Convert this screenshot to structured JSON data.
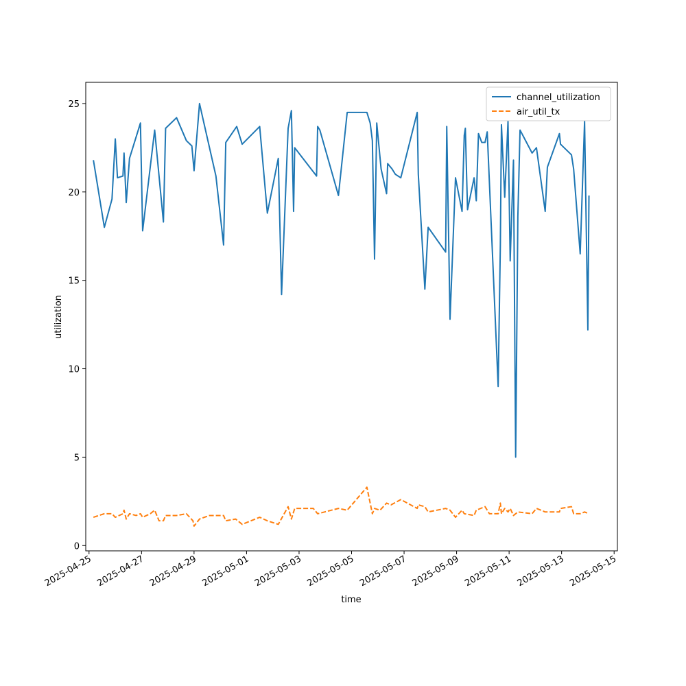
{
  "chart_data": {
    "type": "line",
    "xlabel": "time",
    "ylabel": "utilization",
    "x_type": "datetime",
    "xlim": [
      "2025-04-24T21:00",
      "2025-05-15T03:00"
    ],
    "ylim": [
      -0.3,
      26.2
    ],
    "x_ticks": [
      "2025-04-25",
      "2025-04-27",
      "2025-04-29",
      "2025-05-01",
      "2025-05-03",
      "2025-05-05",
      "2025-05-07",
      "2025-05-09",
      "2025-05-11",
      "2025-05-13",
      "2025-05-15"
    ],
    "y_ticks": [
      0,
      5,
      10,
      15,
      20,
      25
    ],
    "legend": {
      "position": "top-right"
    },
    "grid": false,
    "series": [
      {
        "name": "channel_utilization",
        "color": "#1f77b4",
        "dash": "solid",
        "points": [
          [
            "2025-04-25T04:00",
            21.8
          ],
          [
            "2025-04-25T14:00",
            18.0
          ],
          [
            "2025-04-25T21:00",
            19.6
          ],
          [
            "2025-04-26T00:00",
            23.0
          ],
          [
            "2025-04-26T02:00",
            20.8
          ],
          [
            "2025-04-26T07:00",
            20.9
          ],
          [
            "2025-04-26T08:00",
            22.2
          ],
          [
            "2025-04-26T10:00",
            19.4
          ],
          [
            "2025-04-26T13:00",
            21.9
          ],
          [
            "2025-04-26T23:00",
            23.9
          ],
          [
            "2025-04-27T01:00",
            17.8
          ],
          [
            "2025-04-27T12:00",
            23.5
          ],
          [
            "2025-04-27T20:00",
            18.3
          ],
          [
            "2025-04-27T22:00",
            23.6
          ],
          [
            "2025-04-28T08:00",
            24.2
          ],
          [
            "2025-04-28T17:00",
            22.9
          ],
          [
            "2025-04-28T22:00",
            22.6
          ],
          [
            "2025-04-29T00:00",
            21.2
          ],
          [
            "2025-04-29T05:00",
            25.0
          ],
          [
            "2025-04-29T09:00",
            23.9
          ],
          [
            "2025-04-29T20:00",
            20.9
          ],
          [
            "2025-04-30T03:00",
            17.0
          ],
          [
            "2025-04-30T05:00",
            22.8
          ],
          [
            "2025-04-30T15:00",
            23.7
          ],
          [
            "2025-04-30T20:00",
            22.7
          ],
          [
            "2025-05-01T12:00",
            23.7
          ],
          [
            "2025-05-01T19:00",
            18.8
          ],
          [
            "2025-05-02T05:00",
            21.9
          ],
          [
            "2025-05-02T08:00",
            14.2
          ],
          [
            "2025-05-02T14:00",
            23.6
          ],
          [
            "2025-05-02T17:00",
            24.6
          ],
          [
            "2025-05-02T19:00",
            18.9
          ],
          [
            "2025-05-02T20:00",
            22.5
          ],
          [
            "2025-05-03T16:00",
            20.9
          ],
          [
            "2025-05-03T17:00",
            23.7
          ],
          [
            "2025-05-03T19:00",
            23.5
          ],
          [
            "2025-05-04T12:00",
            19.8
          ],
          [
            "2025-05-04T20:00",
            24.5
          ],
          [
            "2025-05-05T14:00",
            24.5
          ],
          [
            "2025-05-05T17:00",
            23.9
          ],
          [
            "2025-05-05T19:00",
            22.9
          ],
          [
            "2025-05-05T21:00",
            16.2
          ],
          [
            "2025-05-05T23:00",
            23.9
          ],
          [
            "2025-05-06T03:00",
            21.3
          ],
          [
            "2025-05-06T08:00",
            19.9
          ],
          [
            "2025-05-06T09:00",
            21.6
          ],
          [
            "2025-05-06T13:00",
            21.3
          ],
          [
            "2025-05-06T16:00",
            21.0
          ],
          [
            "2025-05-06T21:00",
            20.8
          ],
          [
            "2025-05-07T12:00",
            24.5
          ],
          [
            "2025-05-07T13:00",
            21.0
          ],
          [
            "2025-05-07T19:00",
            14.5
          ],
          [
            "2025-05-07T22:00",
            18.0
          ],
          [
            "2025-05-08T14:00",
            16.6
          ],
          [
            "2025-05-08T15:00",
            23.7
          ],
          [
            "2025-05-08T18:00",
            12.8
          ],
          [
            "2025-05-08T23:00",
            20.8
          ],
          [
            "2025-05-09T05:00",
            18.9
          ],
          [
            "2025-05-09T07:00",
            23.2
          ],
          [
            "2025-05-09T08:00",
            23.6
          ],
          [
            "2025-05-09T10:00",
            19.0
          ],
          [
            "2025-05-09T16:00",
            20.8
          ],
          [
            "2025-05-09T18:00",
            19.5
          ],
          [
            "2025-05-09T20:00",
            23.3
          ],
          [
            "2025-05-09T23:00",
            22.8
          ],
          [
            "2025-05-10T02:00",
            22.8
          ],
          [
            "2025-05-10T04:00",
            23.4
          ],
          [
            "2025-05-10T14:00",
            9.0
          ],
          [
            "2025-05-10T16:00",
            17.0
          ],
          [
            "2025-05-10T17:00",
            23.8
          ],
          [
            "2025-05-10T20:00",
            19.7
          ],
          [
            "2025-05-10T23:00",
            24.0
          ],
          [
            "2025-05-11T01:00",
            16.1
          ],
          [
            "2025-05-11T04:00",
            21.8
          ],
          [
            "2025-05-11T06:00",
            5.0
          ],
          [
            "2025-05-11T08:00",
            18.6
          ],
          [
            "2025-05-11T10:00",
            23.5
          ],
          [
            "2025-05-11T21:00",
            22.2
          ],
          [
            "2025-05-12T01:00",
            22.5
          ],
          [
            "2025-05-12T09:00",
            18.9
          ],
          [
            "2025-05-12T11:00",
            21.4
          ],
          [
            "2025-05-12T22:00",
            23.3
          ],
          [
            "2025-05-12T23:00",
            22.7
          ],
          [
            "2025-05-13T09:00",
            22.1
          ],
          [
            "2025-05-13T11:00",
            21.3
          ],
          [
            "2025-05-13T17:00",
            16.5
          ],
          [
            "2025-05-13T21:00",
            24.0
          ],
          [
            "2025-05-14T00:00",
            12.2
          ],
          [
            "2025-05-14T01:00",
            19.8
          ]
        ]
      },
      {
        "name": "air_util_tx",
        "color": "#ff7f0e",
        "dash": "dashed",
        "points": [
          [
            "2025-04-25T04:00",
            1.6
          ],
          [
            "2025-04-25T14:00",
            1.8
          ],
          [
            "2025-04-25T21:00",
            1.8
          ],
          [
            "2025-04-26T00:00",
            1.6
          ],
          [
            "2025-04-26T07:00",
            1.8
          ],
          [
            "2025-04-26T08:00",
            2.0
          ],
          [
            "2025-04-26T10:00",
            1.5
          ],
          [
            "2025-04-26T13:00",
            1.8
          ],
          [
            "2025-04-26T19:00",
            1.7
          ],
          [
            "2025-04-26T23:00",
            1.8
          ],
          [
            "2025-04-27T01:00",
            1.6
          ],
          [
            "2025-04-27T08:00",
            1.8
          ],
          [
            "2025-04-27T12:00",
            2.0
          ],
          [
            "2025-04-27T16:00",
            1.4
          ],
          [
            "2025-04-27T20:00",
            1.4
          ],
          [
            "2025-04-27T22:00",
            1.7
          ],
          [
            "2025-04-28T08:00",
            1.7
          ],
          [
            "2025-04-28T17:00",
            1.8
          ],
          [
            "2025-04-28T23:00",
            1.4
          ],
          [
            "2025-04-29T00:00",
            1.1
          ],
          [
            "2025-04-29T05:00",
            1.5
          ],
          [
            "2025-04-29T14:00",
            1.7
          ],
          [
            "2025-04-30T03:00",
            1.7
          ],
          [
            "2025-04-30T05:00",
            1.4
          ],
          [
            "2025-04-30T14:00",
            1.5
          ],
          [
            "2025-04-30T20:00",
            1.2
          ],
          [
            "2025-05-01T12:00",
            1.6
          ],
          [
            "2025-05-01T19:00",
            1.4
          ],
          [
            "2025-05-02T05:00",
            1.2
          ],
          [
            "2025-05-02T14:00",
            2.2
          ],
          [
            "2025-05-02T17:00",
            1.5
          ],
          [
            "2025-05-02T20:00",
            2.1
          ],
          [
            "2025-05-03T13:00",
            2.1
          ],
          [
            "2025-05-03T17:00",
            1.8
          ],
          [
            "2025-05-04T12:00",
            2.1
          ],
          [
            "2025-05-04T20:00",
            2.0
          ],
          [
            "2025-05-05T14:00",
            3.3
          ],
          [
            "2025-05-05T19:00",
            1.8
          ],
          [
            "2025-05-05T21:00",
            2.1
          ],
          [
            "2025-05-06T02:00",
            2.0
          ],
          [
            "2025-05-06T08:00",
            2.4
          ],
          [
            "2025-05-06T12:00",
            2.3
          ],
          [
            "2025-05-06T21:00",
            2.6
          ],
          [
            "2025-05-07T12:00",
            2.1
          ],
          [
            "2025-05-07T13:00",
            2.3
          ],
          [
            "2025-05-07T19:00",
            2.2
          ],
          [
            "2025-05-07T22:00",
            1.9
          ],
          [
            "2025-05-08T14:00",
            2.1
          ],
          [
            "2025-05-08T18:00",
            2.0
          ],
          [
            "2025-05-08T23:00",
            1.6
          ],
          [
            "2025-05-09T05:00",
            2.0
          ],
          [
            "2025-05-09T07:00",
            1.8
          ],
          [
            "2025-05-09T16:00",
            1.7
          ],
          [
            "2025-05-09T18:00",
            2.0
          ],
          [
            "2025-05-10T02:00",
            2.2
          ],
          [
            "2025-05-10T06:00",
            1.8
          ],
          [
            "2025-05-10T14:00",
            1.8
          ],
          [
            "2025-05-10T16:00",
            2.4
          ],
          [
            "2025-05-10T17:00",
            1.8
          ],
          [
            "2025-05-10T20:00",
            2.1
          ],
          [
            "2025-05-10T23:00",
            1.9
          ],
          [
            "2025-05-11T01:00",
            2.1
          ],
          [
            "2025-05-11T04:00",
            1.7
          ],
          [
            "2025-05-11T08:00",
            1.9
          ],
          [
            "2025-05-11T21:00",
            1.8
          ],
          [
            "2025-05-12T01:00",
            2.1
          ],
          [
            "2025-05-12T09:00",
            1.9
          ],
          [
            "2025-05-12T22:00",
            1.9
          ],
          [
            "2025-05-12T23:00",
            2.1
          ],
          [
            "2025-05-13T09:00",
            2.2
          ],
          [
            "2025-05-13T11:00",
            1.8
          ],
          [
            "2025-05-13T17:00",
            1.8
          ],
          [
            "2025-05-13T21:00",
            1.9
          ],
          [
            "2025-05-14T01:00",
            1.8
          ]
        ]
      }
    ]
  }
}
